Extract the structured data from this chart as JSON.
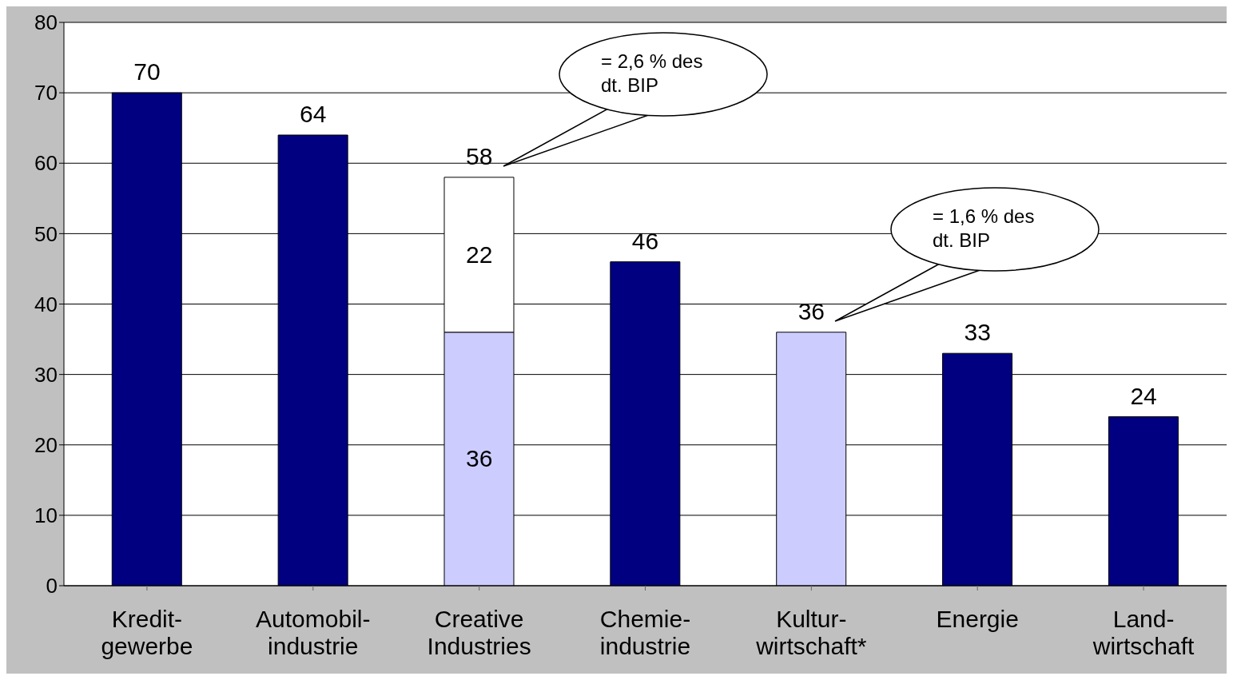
{
  "chart_data": {
    "type": "bar",
    "stacked": true,
    "categories": [
      "Kredit-\ngewerbe",
      "Automobil-\nindustrie",
      "Creative\nIndustries",
      "Chemie-\nindustrie",
      "Kultur-\nwirtschaft*",
      "Energie",
      "Land-\nwirtschaft"
    ],
    "series": [
      {
        "colors": [
          "#000080",
          "#000080",
          "#ccccff",
          "#000080",
          "#ccccff",
          "#000080",
          "#000080"
        ],
        "values": [
          70,
          64,
          36,
          46,
          36,
          33,
          24
        ],
        "value_labels": [
          null,
          null,
          "36",
          null,
          null,
          null,
          null
        ]
      },
      {
        "color": "#ffffff",
        "values": [
          null,
          null,
          22,
          null,
          null,
          null,
          null
        ],
        "value_labels": [
          null,
          null,
          "22",
          null,
          null,
          null,
          null
        ]
      }
    ],
    "totals": [
      "70",
      "64",
      "58",
      "46",
      "36",
      "33",
      "24"
    ],
    "ylim": [
      0,
      80
    ],
    "yticks": [
      0,
      10,
      20,
      30,
      40,
      50,
      60,
      70,
      80
    ],
    "grid": "y",
    "annotations": [
      "= 2,6 % des dt. BIP",
      "= 1,6 % des dt. BIP"
    ]
  }
}
